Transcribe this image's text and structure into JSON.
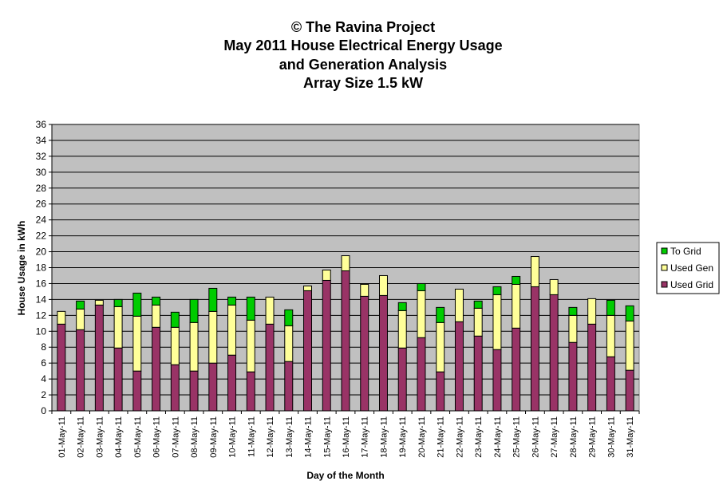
{
  "chart_data": {
    "type": "bar",
    "stacked": true,
    "title_lines": [
      "© The Ravina Project",
      "May 2011 House Electrical Energy Usage",
      "and Generation Analysis",
      "Array Size 1.5 kW"
    ],
    "xlabel": "Day of the Month",
    "ylabel": "House Usage in kWh",
    "ylim": [
      0,
      36
    ],
    "yticks": [
      0,
      2,
      4,
      6,
      8,
      10,
      12,
      14,
      16,
      18,
      20,
      22,
      24,
      26,
      28,
      30,
      32,
      34,
      36
    ],
    "grid": true,
    "legend_position": "right",
    "categories": [
      "01-May-11",
      "02-May-11",
      "03-May-11",
      "04-May-11",
      "05-May-11",
      "06-May-11",
      "07-May-11",
      "08-May-11",
      "09-May-11",
      "10-May-11",
      "11-May-11",
      "12-May-11",
      "13-May-11",
      "14-May-11",
      "15-May-11",
      "16-May-11",
      "17-May-11",
      "18-May-11",
      "19-May-11",
      "20-May-11",
      "21-May-11",
      "22-May-11",
      "23-May-11",
      "24-May-11",
      "25-May-11",
      "26-May-11",
      "27-May-11",
      "28-May-11",
      "29-May-11",
      "30-May-11",
      "31-May-11"
    ],
    "series": [
      {
        "name": "Used Grid",
        "color": "#993366",
        "values": [
          10.9,
          10.2,
          13.3,
          7.9,
          5.0,
          10.5,
          5.8,
          5.0,
          6.0,
          7.0,
          4.9,
          10.9,
          6.2,
          15.1,
          16.4,
          17.6,
          14.4,
          14.5,
          7.9,
          9.2,
          4.9,
          11.2,
          9.4,
          7.7,
          10.4,
          15.6,
          14.6,
          8.6,
          10.9,
          6.8,
          5.1
        ]
      },
      {
        "name": "Used Gen",
        "color": "#FFFF99",
        "values": [
          1.6,
          2.6,
          0.6,
          5.2,
          6.9,
          2.8,
          4.7,
          6.1,
          6.5,
          6.3,
          6.5,
          3.4,
          4.5,
          0.6,
          1.3,
          1.9,
          1.5,
          2.5,
          4.7,
          5.9,
          6.2,
          4.1,
          3.5,
          6.9,
          5.5,
          3.8,
          1.9,
          3.4,
          3.2,
          5.2,
          6.2
        ]
      },
      {
        "name": "To Grid",
        "color": "#00CC00",
        "values": [
          0.0,
          1.0,
          0.0,
          0.9,
          2.9,
          1.0,
          1.9,
          2.9,
          2.9,
          1.0,
          2.9,
          0.0,
          2.0,
          0.0,
          0.0,
          0.0,
          0.0,
          0.0,
          1.0,
          0.9,
          1.9,
          0.0,
          0.9,
          1.0,
          1.0,
          0.0,
          0.0,
          1.0,
          0.0,
          1.9,
          1.9
        ]
      }
    ],
    "legend_order": [
      "To Grid",
      "Used Gen",
      "Used Grid"
    ]
  },
  "colors": {
    "plot_background": "#C0C0C0",
    "gridline": "#000000",
    "bar_outline": "#000000"
  }
}
